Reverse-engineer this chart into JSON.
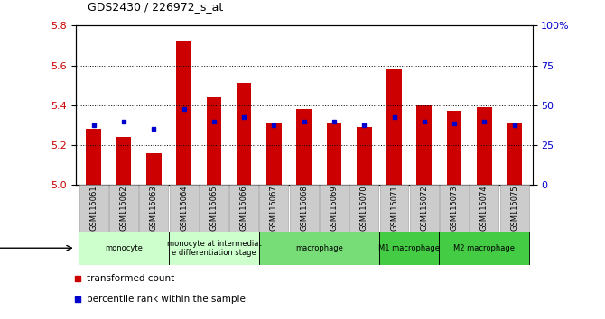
{
  "title": "GDS2430 / 226972_s_at",
  "samples": [
    "GSM115061",
    "GSM115062",
    "GSM115063",
    "GSM115064",
    "GSM115065",
    "GSM115066",
    "GSM115067",
    "GSM115068",
    "GSM115069",
    "GSM115070",
    "GSM115071",
    "GSM115072",
    "GSM115073",
    "GSM115074",
    "GSM115075"
  ],
  "red_values": [
    5.28,
    5.24,
    5.16,
    5.72,
    5.44,
    5.51,
    5.31,
    5.38,
    5.31,
    5.29,
    5.58,
    5.4,
    5.37,
    5.39,
    5.31
  ],
  "blue_values": [
    5.3,
    5.32,
    5.28,
    5.38,
    5.32,
    5.34,
    5.3,
    5.32,
    5.32,
    5.3,
    5.34,
    5.32,
    5.31,
    5.32,
    5.3
  ],
  "ylim_left": [
    5.0,
    5.8
  ],
  "ylim_right": [
    0,
    100
  ],
  "yticks_left": [
    5.0,
    5.2,
    5.4,
    5.6,
    5.8
  ],
  "yticks_right": [
    0,
    25,
    50,
    75,
    100
  ],
  "ytick_labels_right": [
    "0",
    "25",
    "50",
    "75",
    "100%"
  ],
  "bar_color": "#cc0000",
  "dot_color": "#0000cc",
  "bg_color": "#ffffff",
  "tick_label_color_left": "#cc0000",
  "tick_label_color_right": "#0000cc",
  "stages": [
    {
      "label": "monocyte",
      "start": 0,
      "end": 3,
      "color": "#ccffcc"
    },
    {
      "label": "monocyte at intermediat\ne differentiation stage",
      "start": 3,
      "end": 6,
      "color": "#ccffcc"
    },
    {
      "label": "macrophage",
      "start": 6,
      "end": 10,
      "color": "#77dd77"
    },
    {
      "label": "M1 macrophage",
      "start": 10,
      "end": 12,
      "color": "#44cc44"
    },
    {
      "label": "M2 macrophage",
      "start": 12,
      "end": 15,
      "color": "#44cc44"
    }
  ],
  "legend_red": "transformed count",
  "legend_blue": "percentile rank within the sample",
  "bar_width": 0.5,
  "base_value": 5.0,
  "xtick_bg": "#cccccc",
  "xtick_border": "#999999"
}
